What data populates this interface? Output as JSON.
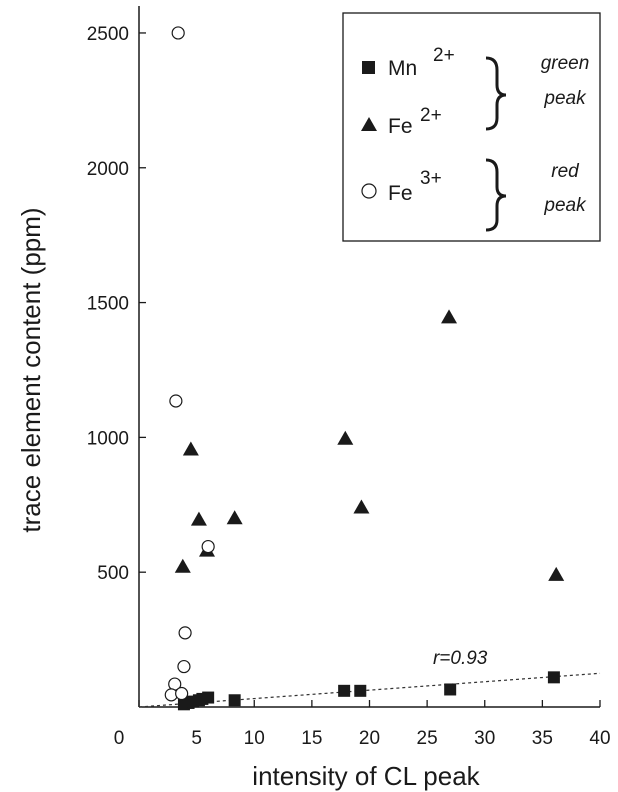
{
  "chart_data": {
    "type": "scatter",
    "xlabel": "intensity of CL peak",
    "ylabel": "trace element content (ppm)",
    "xlim": [
      0,
      40
    ],
    "ylim": [
      0,
      2600
    ],
    "xticks": [
      0,
      5,
      10,
      15,
      20,
      25,
      30,
      35,
      40
    ],
    "yticks": [
      500,
      1000,
      1500,
      2000,
      2500
    ],
    "xtick_labels": [
      "0",
      "5",
      "10",
      "15",
      "20",
      "25",
      "30",
      "35",
      "40"
    ],
    "ytick_labels": [
      "500",
      "1000",
      "1500",
      "2000",
      "2500"
    ],
    "grid": false,
    "legend_position": "top-right",
    "legend": {
      "mn": {
        "base": "Mn",
        "sup": "2+"
      },
      "fe2": {
        "base": "Fe",
        "sup": "2+"
      },
      "fe3": {
        "base": "Fe",
        "sup": "3+"
      },
      "green_line1": "green",
      "green_line2": "peak",
      "red_line1": "red",
      "red_line2": "peak"
    },
    "series": [
      {
        "name": "Mn2+",
        "marker": "filled-square",
        "points": [
          [
            3.9,
            10
          ],
          [
            4.3,
            15
          ],
          [
            4.7,
            20
          ],
          [
            5.2,
            25
          ],
          [
            5.5,
            30
          ],
          [
            6.0,
            35
          ],
          [
            8.3,
            25
          ],
          [
            17.8,
            60
          ],
          [
            19.2,
            60
          ],
          [
            27.0,
            65
          ],
          [
            36.0,
            110
          ]
        ]
      },
      {
        "name": "Fe2+",
        "marker": "filled-triangle",
        "points": [
          [
            3.8,
            520
          ],
          [
            4.5,
            955
          ],
          [
            5.2,
            695
          ],
          [
            5.9,
            580
          ],
          [
            8.3,
            700
          ],
          [
            17.9,
            995
          ],
          [
            19.3,
            740
          ],
          [
            26.9,
            1445
          ],
          [
            36.2,
            490
          ]
        ]
      },
      {
        "name": "Fe3+",
        "marker": "open-circle",
        "points": [
          [
            3.4,
            2500
          ],
          [
            3.2,
            1135
          ],
          [
            6.0,
            595
          ],
          [
            4.0,
            275
          ],
          [
            3.9,
            150
          ],
          [
            3.1,
            85
          ],
          [
            2.8,
            45
          ],
          [
            3.7,
            50
          ]
        ]
      }
    ],
    "annotations": [
      {
        "text": "r=0.93",
        "x": 27,
        "y": 145
      }
    ],
    "trend_line": {
      "x1": 0,
      "y1": 0,
      "x2": 40,
      "y2": 125,
      "style": "dashed"
    }
  }
}
